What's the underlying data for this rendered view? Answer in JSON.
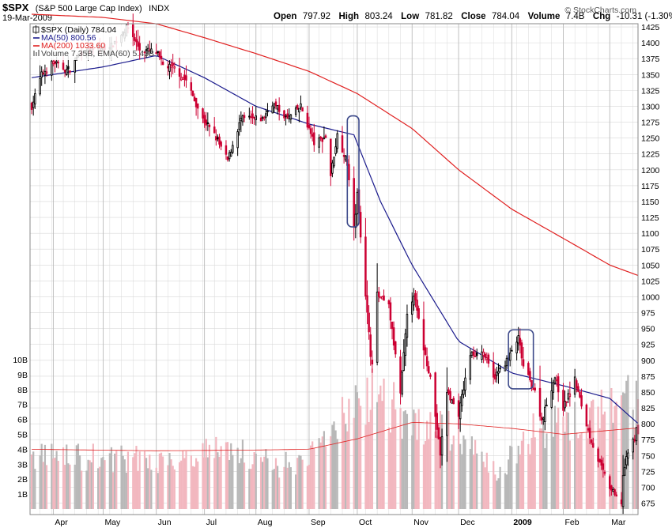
{
  "header": {
    "symbol": "$SPX",
    "description": "(S&P 500 Large Cap Index)",
    "exchange": "INDX",
    "date": "19-Mar-2009",
    "brand": "© StockCharts.com",
    "quote": {
      "open_label": "Open",
      "open": "797.92",
      "high_label": "High",
      "high": "803.24",
      "low_label": "Low",
      "low": "781.82",
      "close_label": "Close",
      "close": "784.04",
      "volume_label": "Volume",
      "volume": "7.4B",
      "chg_label": "Chg",
      "chg": "-10.31 (-1.30%)",
      "chg_arrow": "▼"
    }
  },
  "legend": {
    "price": "$SPX (Daily) 784.04",
    "ma50": "MA(50) 800.56",
    "ma200": "MA(200) 1033.60",
    "volume": "Volume 7.35B, EMA(60) 5.43B"
  },
  "colors": {
    "up": "#000000",
    "down": "#cc0033",
    "ma50": "#1a1a8c",
    "ma200": "#e02020",
    "vol_up": "#b8b8b8",
    "vol_down": "#f2b7bf",
    "grid": "#d8d8d8",
    "annotation": "#3d4a8a"
  },
  "chart_data": {
    "type": "candlestick",
    "title": "$SPX (S&P 500 Large Cap Index) INDX",
    "price_axis": {
      "ticks": [
        "1425",
        "1400",
        "1375",
        "1350",
        "1325",
        "1300",
        "1275",
        "1250",
        "1225",
        "1200",
        "1175",
        "1150",
        "1125",
        "1100",
        "1075",
        "1050",
        "1025",
        "1000",
        "975",
        "950",
        "925",
        "900",
        "875",
        "850",
        "825",
        "800",
        "775",
        "750",
        "725",
        "700",
        "675"
      ],
      "range": [
        667,
        1440
      ]
    },
    "volume_axis": {
      "ticks": [
        "10B",
        "9B",
        "8B",
        "7B",
        "6B",
        "5B",
        "4B",
        "3B",
        "2B",
        "1B"
      ],
      "range_billions": [
        0,
        11
      ]
    },
    "x_axis": {
      "ticks": [
        "Apr",
        "May",
        "Jun",
        "Jul",
        "Aug",
        "Sep",
        "Oct",
        "Nov",
        "Dec",
        "2009",
        "Feb",
        "Mar"
      ],
      "tick_dates": [
        "2008-04-01",
        "2008-05-01",
        "2008-06-02",
        "2008-07-01",
        "2008-08-01",
        "2008-09-02",
        "2008-10-01",
        "2008-11-03",
        "2008-12-01",
        "2009-01-02",
        "2009-02-02",
        "2009-03-02"
      ],
      "range": [
        "2008-03-18",
        "2009-03-19"
      ]
    },
    "close_anchors": [
      [
        "2008-03-19",
        1300
      ],
      [
        "2008-03-25",
        1350
      ],
      [
        "2008-04-01",
        1370
      ],
      [
        "2008-04-10",
        1355
      ],
      [
        "2008-04-18",
        1385
      ],
      [
        "2008-04-28",
        1390
      ],
      [
        "2008-05-06",
        1395
      ],
      [
        "2008-05-16",
        1425
      ],
      [
        "2008-05-23",
        1390
      ],
      [
        "2008-06-02",
        1385
      ],
      [
        "2008-06-06",
        1365
      ],
      [
        "2008-06-13",
        1360
      ],
      [
        "2008-06-20",
        1340
      ],
      [
        "2008-06-30",
        1280
      ],
      [
        "2008-07-07",
        1255
      ],
      [
        "2008-07-15",
        1215
      ],
      [
        "2008-07-23",
        1280
      ],
      [
        "2008-08-05",
        1280
      ],
      [
        "2008-08-11",
        1305
      ],
      [
        "2008-08-20",
        1280
      ],
      [
        "2008-08-28",
        1300
      ],
      [
        "2008-09-05",
        1242
      ],
      [
        "2008-09-12",
        1252
      ],
      [
        "2008-09-15",
        1192
      ],
      [
        "2008-09-19",
        1255
      ],
      [
        "2008-09-25",
        1210
      ],
      [
        "2008-09-29",
        1106
      ],
      [
        "2008-10-01",
        1161
      ],
      [
        "2008-10-03",
        1099
      ],
      [
        "2008-10-09",
        910
      ],
      [
        "2008-10-10",
        899
      ],
      [
        "2008-10-13",
        1003
      ],
      [
        "2008-10-20",
        985
      ],
      [
        "2008-10-27",
        848
      ],
      [
        "2008-10-31",
        968
      ],
      [
        "2008-11-04",
        1005
      ],
      [
        "2008-11-10",
        919
      ],
      [
        "2008-11-14",
        873
      ],
      [
        "2008-11-20",
        752
      ],
      [
        "2008-11-24",
        851
      ],
      [
        "2008-12-01",
        816
      ],
      [
        "2008-12-08",
        909
      ],
      [
        "2008-12-16",
        913
      ],
      [
        "2008-12-22",
        871
      ],
      [
        "2008-12-31",
        903
      ],
      [
        "2009-01-06",
        935
      ],
      [
        "2009-01-09",
        890
      ],
      [
        "2009-01-16",
        850
      ],
      [
        "2009-01-20",
        805
      ],
      [
        "2009-01-28",
        874
      ],
      [
        "2009-02-02",
        825
      ],
      [
        "2009-02-09",
        869
      ],
      [
        "2009-02-17",
        789
      ],
      [
        "2009-02-23",
        743
      ],
      [
        "2009-03-02",
        700
      ],
      [
        "2009-03-06",
        683
      ],
      [
        "2009-03-09",
        676
      ],
      [
        "2009-03-10",
        719
      ],
      [
        "2009-03-13",
        756
      ],
      [
        "2009-03-17",
        778
      ],
      [
        "2009-03-18",
        794
      ],
      [
        "2009-03-19",
        784
      ]
    ],
    "last_candle": {
      "open": 797.92,
      "high": 803.24,
      "low": 781.82,
      "close": 784.04
    },
    "series": [
      {
        "name": "MA(50)",
        "last": 800.56,
        "points": [
          [
            "2008-03-19",
            1345
          ],
          [
            "2008-05-01",
            1362
          ],
          [
            "2008-06-02",
            1380
          ],
          [
            "2008-07-01",
            1345
          ],
          [
            "2008-08-01",
            1300
          ],
          [
            "2008-09-02",
            1272
          ],
          [
            "2008-09-29",
            1255
          ],
          [
            "2008-10-15",
            1150
          ],
          [
            "2008-11-03",
            1050
          ],
          [
            "2008-12-01",
            930
          ],
          [
            "2009-01-02",
            880
          ],
          [
            "2009-02-02",
            860
          ],
          [
            "2009-03-02",
            840
          ],
          [
            "2009-03-19",
            800.56
          ]
        ]
      },
      {
        "name": "MA(200)",
        "last": 1033.6,
        "points": [
          [
            "2008-03-19",
            1445
          ],
          [
            "2008-05-01",
            1440
          ],
          [
            "2008-06-02",
            1430
          ],
          [
            "2008-07-01",
            1408
          ],
          [
            "2008-08-01",
            1383
          ],
          [
            "2008-09-02",
            1355
          ],
          [
            "2008-10-01",
            1320
          ],
          [
            "2008-11-03",
            1265
          ],
          [
            "2008-12-01",
            1200
          ],
          [
            "2009-01-02",
            1138
          ],
          [
            "2009-02-02",
            1092
          ],
          [
            "2009-03-02",
            1050
          ],
          [
            "2009-03-19",
            1033.6
          ]
        ]
      },
      {
        "name": "EMA(60) volume",
        "last_billions": 5.43,
        "points": [
          [
            "2008-03-19",
            4.0
          ],
          [
            "2008-06-02",
            3.9
          ],
          [
            "2008-08-01",
            3.95
          ],
          [
            "2008-09-02",
            4.0
          ],
          [
            "2008-10-01",
            4.7
          ],
          [
            "2008-11-03",
            5.8
          ],
          [
            "2008-12-01",
            5.7
          ],
          [
            "2009-01-02",
            5.4
          ],
          [
            "2009-02-02",
            5.0
          ],
          [
            "2009-03-19",
            5.43
          ]
        ]
      }
    ],
    "volume_level_anchors_billions": [
      [
        "2008-03-19",
        3.6
      ],
      [
        "2008-06-02",
        3.3
      ],
      [
        "2008-07-15",
        4.2
      ],
      [
        "2008-08-15",
        2.9
      ],
      [
        "2008-09-02",
        3.4
      ],
      [
        "2008-09-29",
        7.0
      ],
      [
        "2008-10-10",
        8.1
      ],
      [
        "2008-11-03",
        5.7
      ],
      [
        "2008-12-01",
        5.2
      ],
      [
        "2008-12-24",
        2.3
      ],
      [
        "2009-01-02",
        3.6
      ],
      [
        "2009-01-20",
        5.7
      ],
      [
        "2009-02-02",
        5.4
      ],
      [
        "2009-03-06",
        6.8
      ],
      [
        "2009-03-19",
        7.35
      ]
    ],
    "volume_last_billions": 7.35,
    "annotations": [
      {
        "shape": "rounded-rectangle",
        "x_range": [
          "2008-09-25",
          "2008-10-02"
        ],
        "y_range": [
          1110,
          1285
        ]
      },
      {
        "shape": "rounded-rectangle",
        "x_range": [
          "2008-12-31",
          "2009-01-15"
        ],
        "y_range": [
          855,
          948
        ]
      }
    ],
    "grid": true,
    "legend_position": "top-left"
  }
}
